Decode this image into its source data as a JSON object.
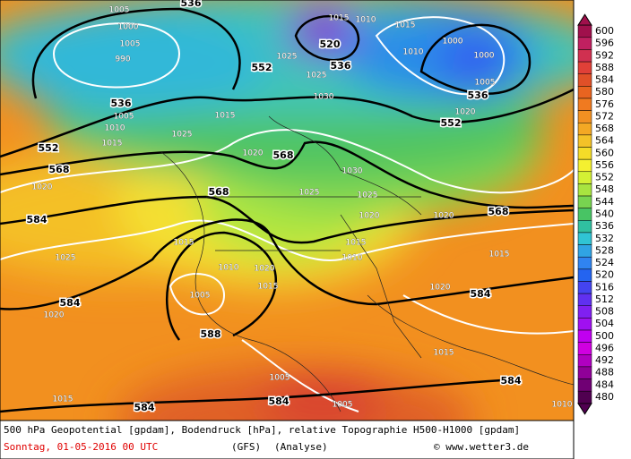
{
  "map": {
    "geopotential_labels": [
      "536",
      "520",
      "552",
      "536",
      "536",
      "552",
      "536",
      "552",
      "568",
      "568",
      "568",
      "584",
      "568",
      "584",
      "584",
      "588",
      "584",
      "584",
      "584"
    ],
    "pressure_labels": [
      "1005",
      "1000",
      "1005",
      "990",
      "1015",
      "1010",
      "1015",
      "1000",
      "1000",
      "1010",
      "1025",
      "1025",
      "1030",
      "1005",
      "1020",
      "1005",
      "1010",
      "1015",
      "1015",
      "1025",
      "1020",
      "1030",
      "1020",
      "1025",
      "1025",
      "1020",
      "1020",
      "1015",
      "1025",
      "1010",
      "1020",
      "1015",
      "1010",
      "1015",
      "1020",
      "1015",
      "1005",
      "1020",
      "1015",
      "1005",
      "1015",
      "1005",
      "1010"
    ]
  },
  "colorbar": {
    "ticks": [
      600,
      596,
      592,
      588,
      584,
      580,
      576,
      572,
      568,
      564,
      560,
      556,
      552,
      548,
      544,
      540,
      536,
      532,
      528,
      524,
      520,
      516,
      512,
      508,
      504,
      500,
      496,
      492,
      488,
      484,
      480
    ],
    "colors": [
      "#a0104c",
      "#c02060",
      "#d03050",
      "#e04038",
      "#e05028",
      "#e86420",
      "#f07a20",
      "#f29022",
      "#f4a824",
      "#f4c228",
      "#f4dc28",
      "#f4f030",
      "#d4f034",
      "#a8e440",
      "#78d450",
      "#48c464",
      "#30c0a0",
      "#30c4d4",
      "#30a4e4",
      "#3084f0",
      "#2464f0",
      "#4444f0",
      "#6030f0",
      "#8020f0",
      "#a010f0",
      "#c000f0",
      "#d000e0",
      "#b000c0",
      "#900098",
      "#700074",
      "#500050"
    ]
  },
  "footer": {
    "line1": "500 hPa Geopotential [gpdam], Bodendruck [hPa], relative Topographie H500-H1000 [gpdam]",
    "date": "Sonntag, 01-05-2016  00 UTC",
    "model": "(GFS)",
    "run": "(Analyse)",
    "credit": "© www.wetter3.de"
  }
}
